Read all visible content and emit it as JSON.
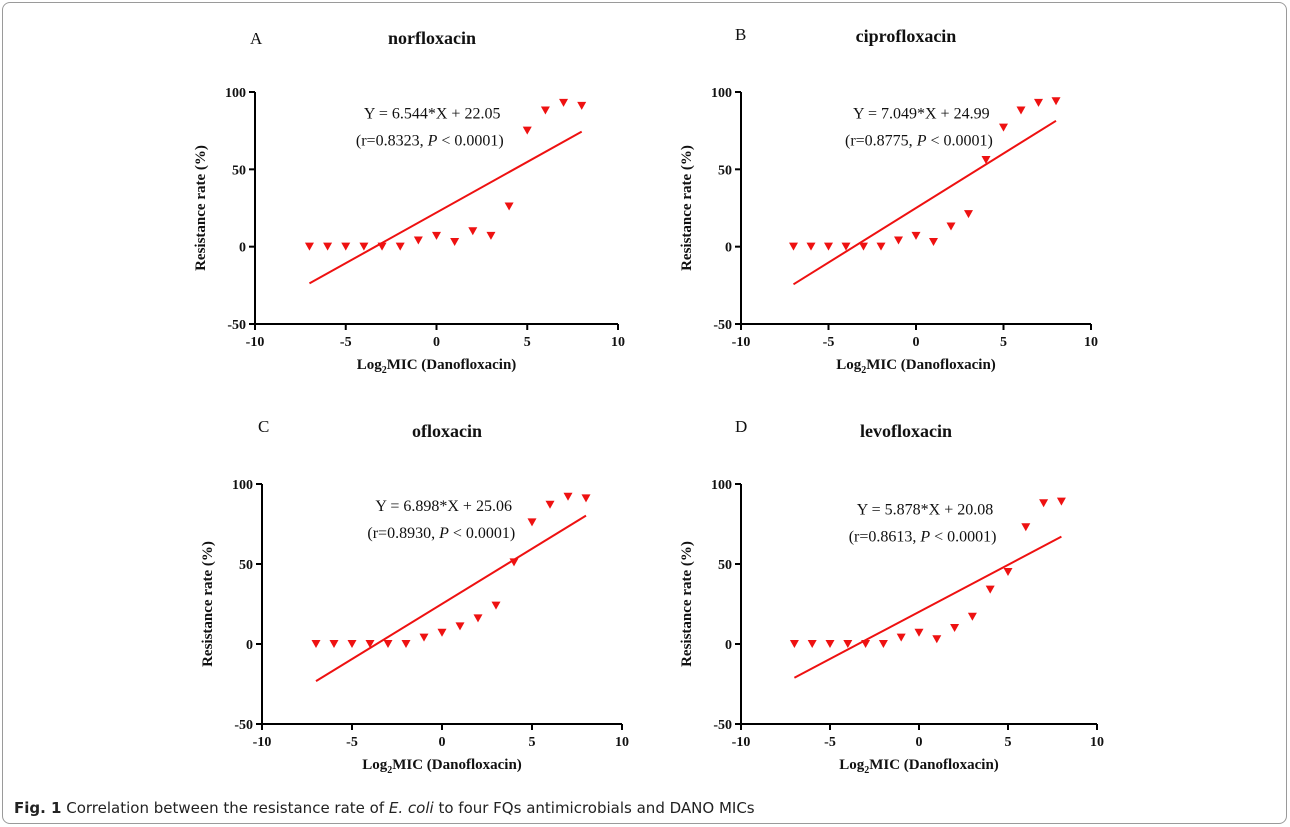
{
  "figure": {
    "caption_label": "Fig. 1",
    "caption_pre": " Correlation between the resistance rate of ",
    "caption_species": "E. coli",
    "caption_post": " to four FQs antimicrobials and DANO MICs"
  },
  "chart_data": [
    {
      "type": "scatter",
      "panel_label": "A",
      "title": "norfloxacin",
      "xlabel": "Log2MIC (Danofloxacin)",
      "ylabel": "Resistance rate (%)",
      "xlim": [
        -10,
        10
      ],
      "ylim": [
        -50,
        100
      ],
      "xticks": [
        -10,
        -5,
        0,
        5,
        10
      ],
      "yticks": [
        -50,
        0,
        50,
        100
      ],
      "marker": "inverted-triangle",
      "color": "#ee1111",
      "points": [
        [
          -7,
          0
        ],
        [
          -6,
          0
        ],
        [
          -5,
          0
        ],
        [
          -4,
          0
        ],
        [
          -3,
          0
        ],
        [
          -2,
          0
        ],
        [
          -1,
          4
        ],
        [
          0,
          7
        ],
        [
          1,
          3
        ],
        [
          2,
          10
        ],
        [
          3,
          7
        ],
        [
          4,
          26
        ],
        [
          5,
          75
        ],
        [
          6,
          88
        ],
        [
          7,
          93
        ],
        [
          8,
          91
        ]
      ],
      "fit": {
        "slope": 6.544,
        "intercept": 22.05,
        "x_range": [
          -7,
          8
        ]
      },
      "equation": "Y = 6.544*X + 22.05",
      "stats": {
        "r": "(r=0.8323, ",
        "p": "P",
        "rest": " < 0.0001)"
      }
    },
    {
      "type": "scatter",
      "panel_label": "B",
      "title": "ciprofloxacin",
      "xlabel": "Log2MIC (Danofloxacin)",
      "ylabel": "Resistance rate (%)",
      "xlim": [
        -10,
        10
      ],
      "ylim": [
        -50,
        100
      ],
      "xticks": [
        -10,
        -5,
        0,
        5,
        10
      ],
      "yticks": [
        -50,
        0,
        50,
        100
      ],
      "marker": "inverted-triangle",
      "color": "#ee1111",
      "points": [
        [
          -7,
          0
        ],
        [
          -6,
          0
        ],
        [
          -5,
          0
        ],
        [
          -4,
          0
        ],
        [
          -3,
          0
        ],
        [
          -2,
          0
        ],
        [
          -1,
          4
        ],
        [
          0,
          7
        ],
        [
          1,
          3
        ],
        [
          2,
          13
        ],
        [
          3,
          21
        ],
        [
          4,
          56
        ],
        [
          5,
          77
        ],
        [
          6,
          88
        ],
        [
          7,
          93
        ],
        [
          8,
          94
        ]
      ],
      "fit": {
        "slope": 7.049,
        "intercept": 24.99,
        "x_range": [
          -7,
          8
        ]
      },
      "equation": "Y = 7.049*X + 24.99",
      "stats": {
        "r": "(r=0.8775, ",
        "p": "P",
        "rest": " < 0.0001)"
      }
    },
    {
      "type": "scatter",
      "panel_label": "C",
      "title": "ofloxacin",
      "xlabel": "Log2MIC (Danofloxacin)",
      "ylabel": "Resistance rate (%)",
      "xlim": [
        -10,
        10
      ],
      "ylim": [
        -50,
        100
      ],
      "xticks": [
        -10,
        -5,
        0,
        5,
        10
      ],
      "yticks": [
        -50,
        0,
        50,
        100
      ],
      "marker": "inverted-triangle",
      "color": "#ee1111",
      "points": [
        [
          -7,
          0
        ],
        [
          -6,
          0
        ],
        [
          -5,
          0
        ],
        [
          -4,
          0
        ],
        [
          -3,
          0
        ],
        [
          -2,
          0
        ],
        [
          -1,
          4
        ],
        [
          0,
          7
        ],
        [
          1,
          11
        ],
        [
          2,
          16
        ],
        [
          3,
          24
        ],
        [
          4,
          51
        ],
        [
          5,
          76
        ],
        [
          6,
          87
        ],
        [
          7,
          92
        ],
        [
          8,
          91
        ]
      ],
      "fit": {
        "slope": 6.898,
        "intercept": 25.06,
        "x_range": [
          -7,
          8
        ]
      },
      "equation": "Y = 6.898*X + 25.06",
      "stats": {
        "r": "(r=0.8930, ",
        "p": "P",
        "rest": " < 0.0001)"
      }
    },
    {
      "type": "scatter",
      "panel_label": "D",
      "title": "levofloxacin",
      "xlabel": "Log2MIC (Danofloxacin)",
      "ylabel": "Resistance rate (%)",
      "xlim": [
        -10,
        10
      ],
      "ylim": [
        -50,
        100
      ],
      "xticks": [
        -10,
        -5,
        0,
        5,
        10
      ],
      "yticks": [
        -50,
        0,
        50,
        100
      ],
      "marker": "inverted-triangle",
      "color": "#ee1111",
      "points": [
        [
          -7,
          0
        ],
        [
          -6,
          0
        ],
        [
          -5,
          0
        ],
        [
          -4,
          0
        ],
        [
          -3,
          0
        ],
        [
          -2,
          0
        ],
        [
          -1,
          4
        ],
        [
          0,
          7
        ],
        [
          1,
          3
        ],
        [
          2,
          10
        ],
        [
          3,
          17
        ],
        [
          4,
          34
        ],
        [
          5,
          45
        ],
        [
          6,
          73
        ],
        [
          7,
          88
        ],
        [
          8,
          89
        ]
      ],
      "fit": {
        "slope": 5.878,
        "intercept": 20.08,
        "x_range": [
          -7,
          8
        ]
      },
      "equation": "Y = 5.878*X + 20.08",
      "stats": {
        "r": "(r=0.8613, ",
        "p": "P",
        "rest": " < 0.0001)"
      }
    }
  ]
}
